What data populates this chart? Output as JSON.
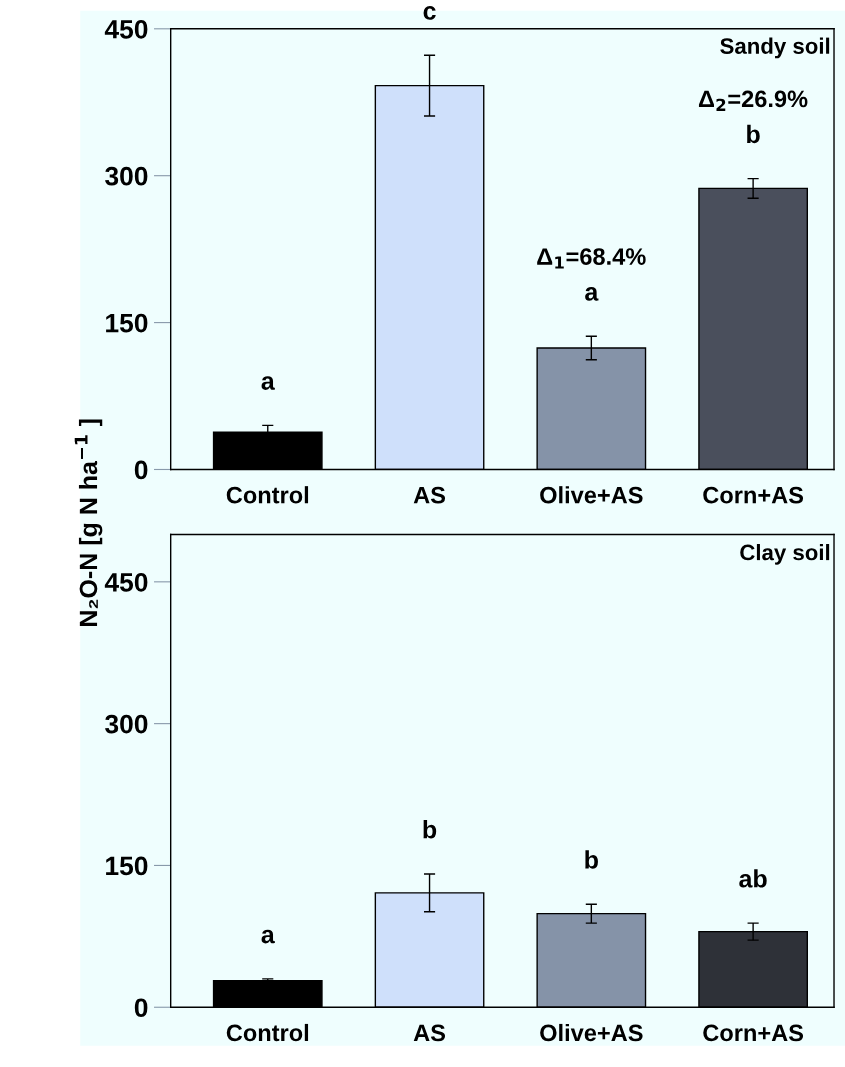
{
  "chart_data": [
    {
      "type": "bar",
      "title": "Sandy soil",
      "ylabel": "N₂O-N [g N ha$^{−1}$ ]",
      "categories": [
        "Control",
        "AS",
        "Olive+AS",
        "Corn+AS"
      ],
      "values": [
        38,
        392,
        124,
        287
      ],
      "errors": [
        7,
        31,
        12,
        10
      ],
      "colors": [
        "#000000",
        "#cfe0fb",
        "#8593a8",
        "#4a4f5c"
      ],
      "value_labels": [
        "a",
        "c",
        "a",
        "b"
      ],
      "ylim": [
        0,
        450
      ],
      "yticks": [
        0,
        150,
        300,
        450
      ],
      "annotations": [
        "Δ$_{1}$=68.4%",
        "Δ$_{2}$=26.9%"
      ]
    },
    {
      "type": "bar",
      "title": "Clay soil",
      "categories": [
        "Control",
        "AS",
        "Olive+AS",
        "Corn+AS"
      ],
      "values": [
        28,
        121,
        99,
        80
      ],
      "errors": [
        2,
        20,
        10,
        9
      ],
      "colors": [
        "#000000",
        "#cfe0fb",
        "#8593a8",
        "#2e3138"
      ],
      "value_labels": [
        "a",
        "b",
        "b",
        "ab"
      ],
      "ylim": [
        0,
        500
      ],
      "yticks": [
        0,
        150,
        300,
        450
      ]
    }
  ]
}
